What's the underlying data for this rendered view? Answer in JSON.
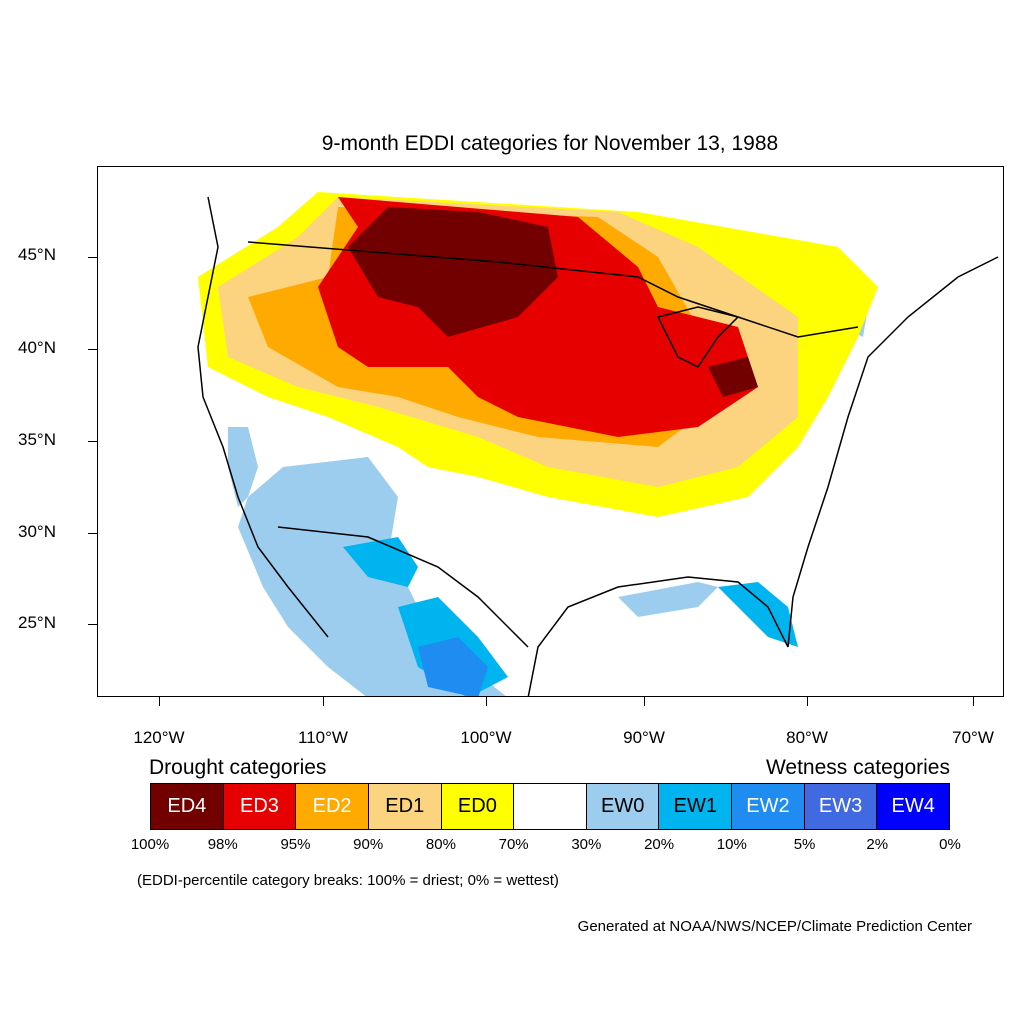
{
  "title": "9-month EDDI categories for November 13, 1988",
  "lat_labels": [
    "45°N",
    "40°N",
    "35°N",
    "30°N",
    "25°N"
  ],
  "lon_labels": [
    "120°W",
    "110°W",
    "100°W",
    "90°W",
    "80°W",
    "70°W"
  ],
  "legend": {
    "drought_heading": "Drought categories",
    "wetness_heading": "Wetness categories",
    "categories": [
      {
        "label": "ED4",
        "color": "#730000",
        "text_color": "#ffffff"
      },
      {
        "label": "ED3",
        "color": "#e60000",
        "text_color": "#ffffff"
      },
      {
        "label": "ED2",
        "color": "#ffaa00",
        "text_color": "#ffffff"
      },
      {
        "label": "ED1",
        "color": "#fcd37f",
        "text_color": "#000000"
      },
      {
        "label": "ED0",
        "color": "#ffff00",
        "text_color": "#000000"
      },
      {
        "label": "",
        "color": "#ffffff",
        "text_color": "#000000"
      },
      {
        "label": "EW0",
        "color": "#9ccdee",
        "text_color": "#000000"
      },
      {
        "label": "EW1",
        "color": "#00b4f0",
        "text_color": "#000000"
      },
      {
        "label": "EW2",
        "color": "#1e8cf0",
        "text_color": "#ffffff"
      },
      {
        "label": "EW3",
        "color": "#4169e1",
        "text_color": "#ffffff"
      },
      {
        "label": "EW4",
        "color": "#0000ff",
        "text_color": "#ffffff"
      }
    ],
    "percentiles": [
      "100%",
      "98%",
      "95%",
      "90%",
      "80%",
      "70%",
      "30%",
      "20%",
      "10%",
      "5%",
      "2%",
      "0%"
    ]
  },
  "note": "(EDDI-percentile category breaks: 100% = driest; 0% = wettest)",
  "credit": "Generated at NOAA/NWS/NCEP/Climate Prediction Center"
}
